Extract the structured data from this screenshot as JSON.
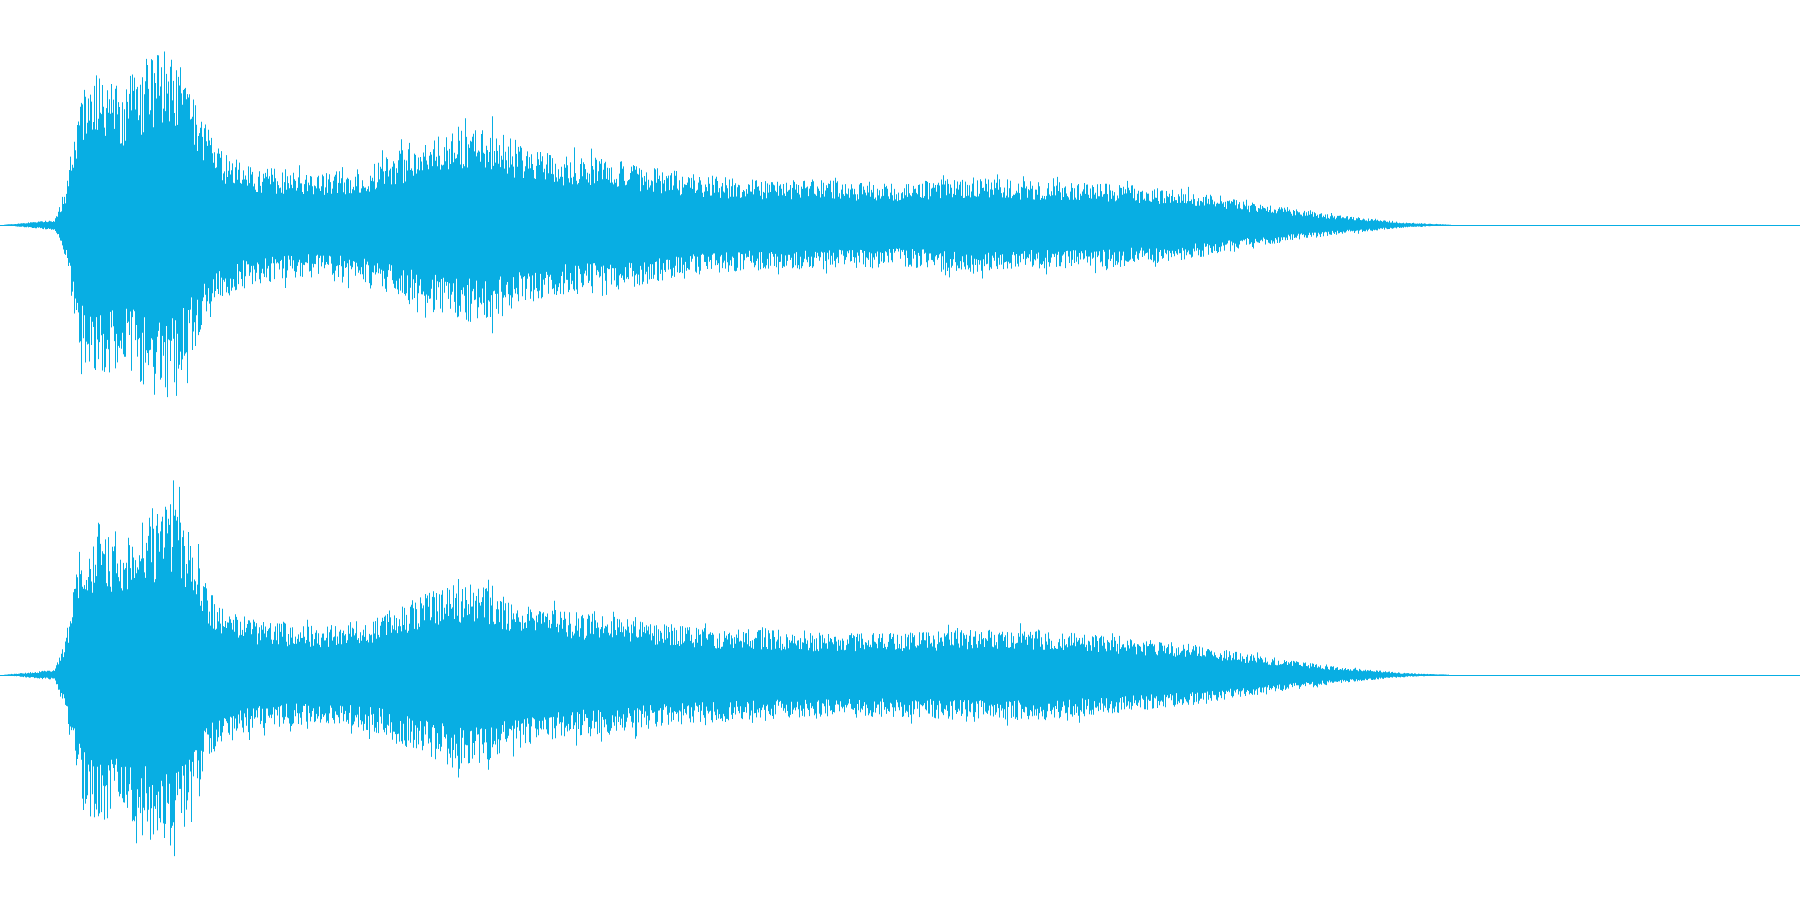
{
  "waveform": {
    "color": "#08aee3",
    "channels": [
      {
        "name": "channel-1",
        "envelope": [
          [
            0.0,
            0.0
          ],
          [
            0.03,
            0.03
          ],
          [
            0.036,
            0.2
          ],
          [
            0.045,
            0.8
          ],
          [
            0.055,
            0.9
          ],
          [
            0.068,
            0.82
          ],
          [
            0.082,
            0.96
          ],
          [
            0.092,
            1.0
          ],
          [
            0.1,
            0.88
          ],
          [
            0.11,
            0.66
          ],
          [
            0.122,
            0.44
          ],
          [
            0.14,
            0.34
          ],
          [
            0.17,
            0.3
          ],
          [
            0.2,
            0.32
          ],
          [
            0.23,
            0.46
          ],
          [
            0.255,
            0.56
          ],
          [
            0.275,
            0.54
          ],
          [
            0.3,
            0.42
          ],
          [
            0.34,
            0.38
          ],
          [
            0.38,
            0.3
          ],
          [
            0.42,
            0.26
          ],
          [
            0.46,
            0.26
          ],
          [
            0.5,
            0.24
          ],
          [
            0.54,
            0.28
          ],
          [
            0.58,
            0.25
          ],
          [
            0.62,
            0.24
          ],
          [
            0.66,
            0.2
          ],
          [
            0.7,
            0.12
          ],
          [
            0.74,
            0.06
          ],
          [
            0.78,
            0.015
          ],
          [
            0.81,
            0.0
          ],
          [
            1.0,
            0.0
          ]
        ]
      },
      {
        "name": "channel-2",
        "envelope": [
          [
            0.0,
            0.0
          ],
          [
            0.03,
            0.03
          ],
          [
            0.036,
            0.2
          ],
          [
            0.045,
            0.78
          ],
          [
            0.055,
            0.88
          ],
          [
            0.068,
            0.84
          ],
          [
            0.082,
            0.94
          ],
          [
            0.096,
            1.0
          ],
          [
            0.106,
            0.86
          ],
          [
            0.114,
            0.5
          ],
          [
            0.126,
            0.36
          ],
          [
            0.15,
            0.3
          ],
          [
            0.18,
            0.28
          ],
          [
            0.21,
            0.34
          ],
          [
            0.235,
            0.46
          ],
          [
            0.256,
            0.54
          ],
          [
            0.275,
            0.48
          ],
          [
            0.3,
            0.38
          ],
          [
            0.34,
            0.34
          ],
          [
            0.38,
            0.28
          ],
          [
            0.42,
            0.26
          ],
          [
            0.46,
            0.24
          ],
          [
            0.5,
            0.24
          ],
          [
            0.54,
            0.26
          ],
          [
            0.58,
            0.26
          ],
          [
            0.62,
            0.22
          ],
          [
            0.66,
            0.18
          ],
          [
            0.7,
            0.11
          ],
          [
            0.74,
            0.05
          ],
          [
            0.78,
            0.012
          ],
          [
            0.81,
            0.0
          ],
          [
            1.0,
            0.0
          ]
        ]
      }
    ]
  }
}
